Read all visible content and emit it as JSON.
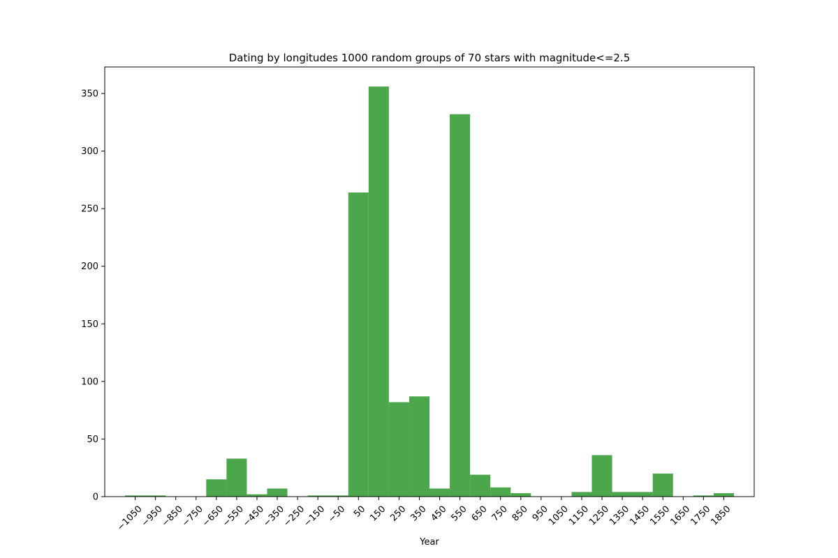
{
  "chart_data": {
    "type": "bar",
    "title": "Dating by longitudes 1000 random groups of 70 stars with magnitude<=2.5",
    "xlabel": "Year",
    "ylabel": "",
    "bar_color": "#4ca64c",
    "bin_width": 100,
    "x_ticks": [
      -1050,
      -950,
      -850,
      -750,
      -650,
      -550,
      -450,
      -350,
      -250,
      -150,
      -50,
      50,
      150,
      250,
      350,
      450,
      550,
      650,
      750,
      850,
      950,
      1050,
      1150,
      1250,
      1350,
      1450,
      1550,
      1650,
      1750,
      1850
    ],
    "x_tick_labels": [
      "−1050",
      "−950",
      "−850",
      "−750",
      "−650",
      "−550",
      "−450",
      "−350",
      "−250",
      "−150",
      "−50",
      "50",
      "150",
      "250",
      "350",
      "450",
      "550",
      "650",
      "750",
      "850",
      "950",
      "1050",
      "1150",
      "1250",
      "1350",
      "1450",
      "1550",
      "1650",
      "1750",
      "1850"
    ],
    "y_ticks": [
      0,
      50,
      100,
      150,
      200,
      250,
      300,
      350
    ],
    "xlim": [
      -1200,
      2000
    ],
    "ylim": [
      0,
      373
    ],
    "grid": false,
    "bins": [
      {
        "x0": -1100,
        "x1": -900,
        "value": 1
      },
      {
        "x0": -700,
        "x1": -600,
        "value": 15
      },
      {
        "x0": -600,
        "x1": -500,
        "value": 33
      },
      {
        "x0": -500,
        "x1": -400,
        "value": 2
      },
      {
        "x0": -400,
        "x1": -300,
        "value": 7
      },
      {
        "x0": -200,
        "x1": 0,
        "value": 1
      },
      {
        "x0": 0,
        "x1": 100,
        "value": 264
      },
      {
        "x0": 100,
        "x1": 200,
        "value": 356
      },
      {
        "x0": 200,
        "x1": 300,
        "value": 82
      },
      {
        "x0": 300,
        "x1": 400,
        "value": 87
      },
      {
        "x0": 400,
        "x1": 500,
        "value": 7
      },
      {
        "x0": 500,
        "x1": 600,
        "value": 332
      },
      {
        "x0": 600,
        "x1": 700,
        "value": 19
      },
      {
        "x0": 700,
        "x1": 800,
        "value": 8
      },
      {
        "x0": 800,
        "x1": 900,
        "value": 3
      },
      {
        "x0": 1100,
        "x1": 1200,
        "value": 4
      },
      {
        "x0": 1200,
        "x1": 1300,
        "value": 36
      },
      {
        "x0": 1300,
        "x1": 1500,
        "value": 4
      },
      {
        "x0": 1500,
        "x1": 1600,
        "value": 20
      },
      {
        "x0": 1700,
        "x1": 1800,
        "value": 1
      },
      {
        "x0": 1800,
        "x1": 1900,
        "value": 3
      }
    ]
  }
}
